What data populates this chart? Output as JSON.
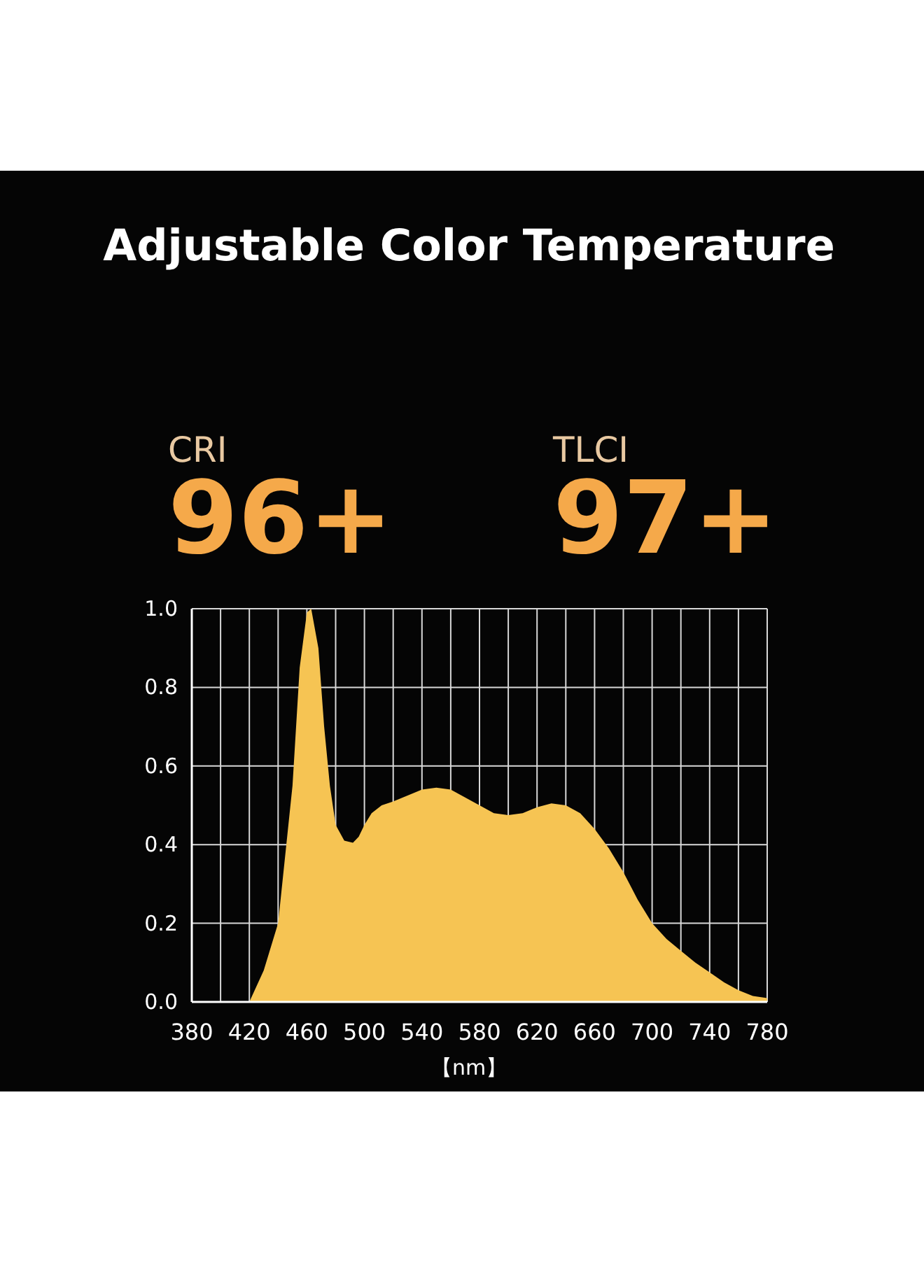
{
  "chart_data": {
    "type": "area",
    "title": "Adjustable Color Temperature",
    "xlabel": "【nm】",
    "annotations": [
      "CRI",
      "96+",
      "TLCI",
      "97+"
    ],
    "x": [
      420,
      430,
      440,
      450,
      455,
      460,
      463,
      468,
      472,
      476,
      480,
      486,
      492,
      496,
      500,
      505,
      512,
      520,
      530,
      540,
      550,
      560,
      570,
      580,
      590,
      600,
      610,
      620,
      630,
      640,
      650,
      660,
      670,
      680,
      690,
      700,
      710,
      720,
      730,
      740,
      750,
      760,
      770,
      780
    ],
    "series": [
      {
        "color": "#f6c453",
        "values": [
          0,
          0.08,
          0.2,
          0.55,
          0.85,
          0.99,
          1.0,
          0.9,
          0.7,
          0.55,
          0.45,
          0.41,
          0.405,
          0.42,
          0.45,
          0.48,
          0.5,
          0.51,
          0.525,
          0.54,
          0.545,
          0.54,
          0.52,
          0.5,
          0.48,
          0.475,
          0.48,
          0.495,
          0.505,
          0.5,
          0.48,
          0.44,
          0.39,
          0.33,
          0.26,
          0.2,
          0.16,
          0.13,
          0.1,
          0.075,
          0.05,
          0.03,
          0.015,
          0.01
        ]
      }
    ],
    "xlim": [
      380,
      780
    ],
    "xticks": [
      380,
      {
        "value": 400,
        "label": null
      },
      420,
      {
        "value": 440,
        "label": null
      },
      460,
      {
        "value": 480,
        "label": null
      },
      500,
      {
        "value": 520,
        "label": null
      },
      540,
      {
        "value": 560,
        "label": null
      },
      580,
      {
        "value": 600,
        "label": null
      },
      620,
      {
        "value": 640,
        "label": null
      },
      660,
      {
        "value": 680,
        "label": null
      },
      700,
      {
        "value": 720,
        "label": null
      },
      740,
      {
        "value": 760,
        "label": null
      },
      780
    ],
    "ylim": [
      0,
      1
    ],
    "yticks": [
      {
        "value": 0,
        "label": "0.0"
      },
      {
        "value": 0.2,
        "label": "0.2"
      },
      {
        "value": 0.4,
        "label": "0.4"
      },
      {
        "value": 0.6,
        "label": "0.6"
      },
      {
        "value": 0.8,
        "label": "0.8"
      },
      {
        "value": 1,
        "label": "1.0"
      }
    ],
    "grid": true
  }
}
